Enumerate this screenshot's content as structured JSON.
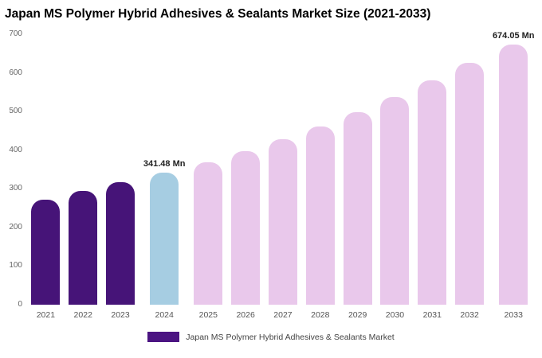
{
  "page_title": "Japan MS Polymer Hybrid Adhesives & Sealants Market Size (2021-2033)",
  "legend": {
    "label": "Japan MS Polymer Hybrid Adhesives & Sealants Market",
    "swatch_color": "#4b1482"
  },
  "colors": {
    "historical": "#461478",
    "current_year": "#a6cde2",
    "forecast": "#e9c8eb"
  },
  "chart_data": {
    "type": "bar",
    "title": "Japan MS Polymer Hybrid Adhesives & Sealants Market Size (2021-2033)",
    "categories": [
      "2021",
      "2022",
      "2023",
      "2024",
      "2025",
      "2026",
      "2027",
      "2028",
      "2029",
      "2030",
      "2031",
      "2032",
      "2033"
    ],
    "values": [
      272,
      294,
      317,
      341.48,
      368,
      397,
      428,
      462,
      498,
      537,
      580,
      625,
      674.05
    ],
    "unit": "Mn",
    "bar_colors": [
      "#461478",
      "#461478",
      "#461478",
      "#a6cde2",
      "#e9c8eb",
      "#e9c8eb",
      "#e9c8eb",
      "#e9c8eb",
      "#e9c8eb",
      "#e9c8eb",
      "#e9c8eb",
      "#e9c8eb",
      "#e9c8eb"
    ],
    "ylim": [
      0,
      700
    ],
    "yticks": [
      0,
      100,
      200,
      300,
      400,
      500,
      600,
      700
    ],
    "xlabel": "",
    "ylabel": "",
    "grid": false,
    "legend_position": "bottom",
    "annotations": [
      {
        "category": "2024",
        "text": "341.48 Mn"
      },
      {
        "category": "2033",
        "text": "674.05 Mn"
      }
    ]
  }
}
